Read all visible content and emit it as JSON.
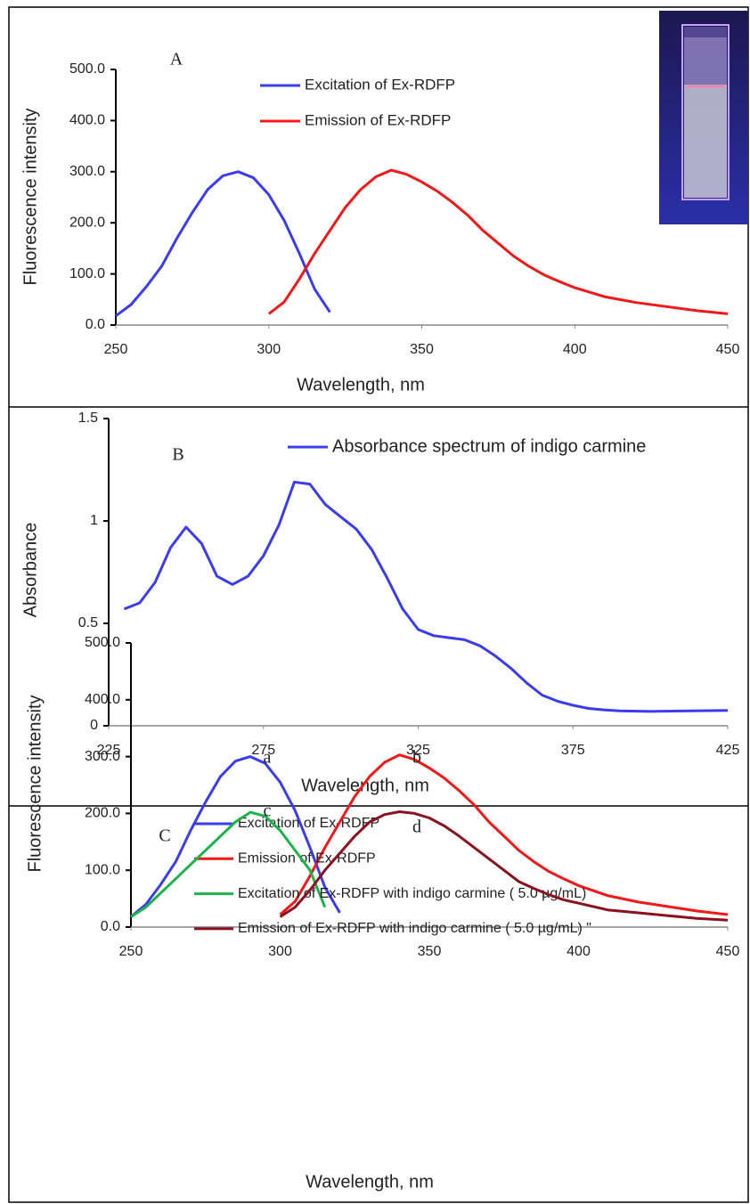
{
  "chart_data": [
    {
      "type": "line",
      "panel_label": "A",
      "x_label": "Wavelength, nm",
      "y_label": "Fluorescence intensity",
      "xlim": [
        250,
        450
      ],
      "xticks": [
        250,
        300,
        350,
        400,
        450
      ],
      "ylim": [
        0,
        500
      ],
      "yticks": [
        {
          "value": 0,
          "label": "0.0"
        },
        {
          "value": 100,
          "label": "100.0"
        },
        {
          "value": 200,
          "label": "200.0"
        },
        {
          "value": 300,
          "label": "300.0"
        },
        {
          "value": 400,
          "label": "400.0"
        },
        {
          "value": 500,
          "label": "500.0"
        }
      ],
      "series": [
        {
          "name": "Excitation of Ex-RDFP",
          "color": "#3b3bf0",
          "x": [
            250,
            255,
            260,
            265,
            270,
            275,
            280,
            285,
            290,
            295,
            300,
            305,
            310,
            315,
            320
          ],
          "values": [
            18,
            40,
            75,
            115,
            170,
            220,
            265,
            292,
            300,
            288,
            255,
            205,
            140,
            70,
            25
          ]
        },
        {
          "name": "Emission of Ex-RDFP",
          "color": "#f01818",
          "x": [
            300,
            305,
            310,
            315,
            320,
            325,
            330,
            335,
            340,
            345,
            350,
            355,
            360,
            365,
            370,
            375,
            380,
            385,
            390,
            395,
            400,
            410,
            420,
            430,
            440,
            450
          ],
          "values": [
            22,
            45,
            90,
            140,
            185,
            230,
            265,
            290,
            303,
            295,
            280,
            262,
            240,
            215,
            185,
            160,
            135,
            115,
            98,
            85,
            73,
            55,
            44,
            36,
            28,
            22
          ]
        }
      ]
    },
    {
      "type": "line",
      "panel_label": "B",
      "x_label": "Wavelength, nm",
      "y_label": "Absorbance",
      "xlim": [
        225,
        425
      ],
      "xticks": [
        225,
        275,
        325,
        375,
        425
      ],
      "ylim": [
        0,
        1.5
      ],
      "yticks": [
        0,
        0.5,
        1,
        1.5
      ],
      "series": [
        {
          "name": "Absorbance spectrum of indigo carmine",
          "color": "#3b3bf0",
          "x": [
            230,
            235,
            240,
            245,
            250,
            255,
            260,
            265,
            270,
            275,
            280,
            285,
            290,
            295,
            300,
            305,
            310,
            315,
            320,
            325,
            330,
            335,
            340,
            345,
            350,
            355,
            360,
            365,
            370,
            375,
            380,
            385,
            390,
            400,
            410,
            425
          ],
          "values": [
            0.57,
            0.6,
            0.7,
            0.87,
            0.97,
            0.89,
            0.73,
            0.69,
            0.73,
            0.83,
            0.98,
            1.19,
            1.18,
            1.08,
            1.02,
            0.96,
            0.86,
            0.72,
            0.57,
            0.47,
            0.44,
            0.43,
            0.42,
            0.39,
            0.34,
            0.28,
            0.21,
            0.15,
            0.12,
            0.1,
            0.085,
            0.078,
            0.073,
            0.07,
            0.072,
            0.075
          ]
        }
      ]
    },
    {
      "type": "line",
      "panel_label": "C",
      "x_label": "Wavelength, nm",
      "y_label": "Fluorescence intensity",
      "xlim": [
        250,
        450
      ],
      "xticks": [
        250,
        300,
        350,
        400,
        450
      ],
      "ylim": [
        0,
        500
      ],
      "yticks": [
        {
          "value": 0,
          "label": "0.0"
        },
        {
          "value": 100,
          "label": "100.0"
        },
        {
          "value": 200,
          "label": "200.0"
        },
        {
          "value": 300,
          "label": "300.0"
        },
        {
          "value": 400,
          "label": "400.0"
        },
        {
          "value": 500,
          "label": "500.0"
        }
      ],
      "annotations": [
        "a",
        "b",
        "c",
        "d"
      ],
      "series": [
        {
          "name": "Excitation of Ex-RDFP",
          "color": "#3b3bf0",
          "x": [
            250,
            255,
            260,
            265,
            270,
            275,
            280,
            285,
            290,
            295,
            300,
            305,
            310,
            315,
            320
          ],
          "values": [
            18,
            40,
            75,
            115,
            170,
            220,
            265,
            292,
            300,
            288,
            255,
            205,
            140,
            70,
            25
          ]
        },
        {
          "name": "Emission of Ex-RDFP",
          "color": "#f01818",
          "x": [
            300,
            305,
            310,
            315,
            320,
            325,
            330,
            335,
            340,
            345,
            350,
            355,
            360,
            365,
            370,
            375,
            380,
            385,
            390,
            395,
            400,
            410,
            420,
            430,
            440,
            450
          ],
          "values": [
            22,
            45,
            90,
            140,
            185,
            230,
            265,
            290,
            303,
            295,
            280,
            262,
            240,
            215,
            185,
            160,
            135,
            115,
            98,
            85,
            73,
            55,
            44,
            36,
            28,
            22
          ]
        },
        {
          "name": "Excitation of Ex-RDFP with indigo carmine ( 5.0 µg/mL)",
          "color": "#1db34a",
          "x": [
            250,
            255,
            260,
            265,
            270,
            275,
            280,
            285,
            290,
            295,
            300,
            305,
            310,
            315
          ],
          "values": [
            18,
            35,
            60,
            85,
            110,
            135,
            160,
            185,
            202,
            195,
            170,
            135,
            100,
            35
          ]
        },
        {
          "name": "Emission of Ex-RDFP with indigo carmine ( 5.0 µg/mL) \"",
          "color": "#8b1020",
          "x": [
            300,
            305,
            310,
            315,
            320,
            325,
            330,
            335,
            340,
            345,
            350,
            355,
            360,
            365,
            370,
            375,
            380,
            385,
            390,
            395,
            400,
            410,
            420,
            430,
            440,
            450
          ],
          "values": [
            18,
            35,
            65,
            100,
            130,
            160,
            185,
            198,
            203,
            200,
            192,
            178,
            160,
            140,
            120,
            100,
            80,
            68,
            57,
            48,
            42,
            30,
            25,
            20,
            15,
            12
          ]
        }
      ]
    }
  ]
}
